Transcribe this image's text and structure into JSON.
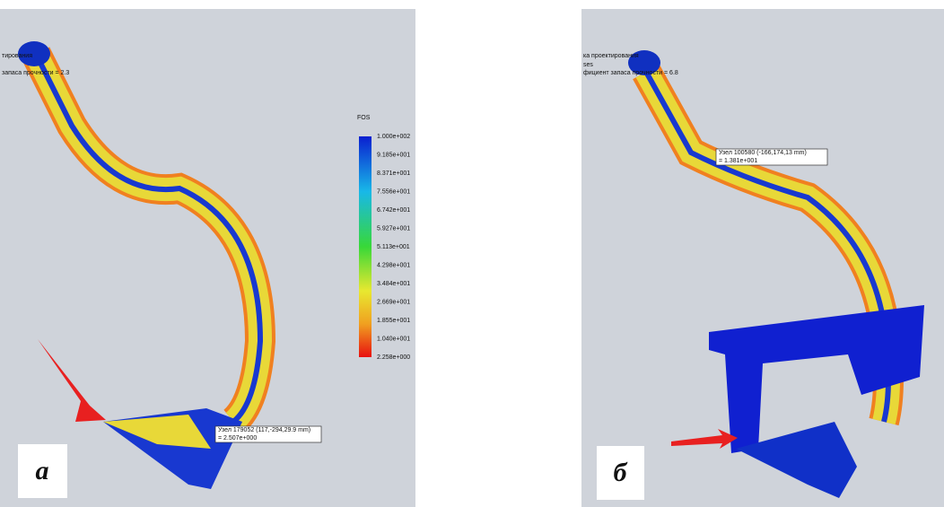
{
  "panels": [
    {
      "label": "а",
      "header": [
        "тирования",
        "запаса прочности = 2.3"
      ],
      "probe": [
        "Узел 179052 (117,-294,29.9 mm)",
        "= 2.507e+000"
      ]
    },
    {
      "label": "б",
      "header": [
        "ка проектирования",
        "ses",
        "фициент запаса прочности = 6.8"
      ],
      "probe": [
        "Узел 100580 (-166,174,13 mm)",
        "= 1.381e+001"
      ]
    }
  ],
  "colorbar": {
    "title": "FOS",
    "labels": [
      "1.000e+002",
      "9.185e+001",
      "8.371e+001",
      "7.556e+001",
      "6.742e+001",
      "5.927e+001",
      "5.113e+001",
      "4.298e+001",
      "3.484e+001",
      "2.669e+001",
      "1.855e+001",
      "1.040e+001",
      "2.258e+000"
    ]
  }
}
